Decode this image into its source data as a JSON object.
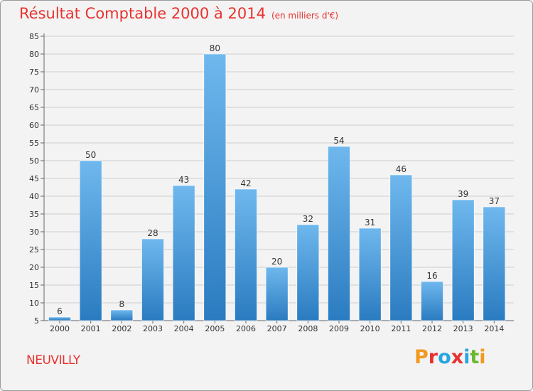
{
  "header": {
    "title": "Résultat Comptable 2000 à 2014",
    "subtitle": "(en milliers d'€)"
  },
  "footer": {
    "commune": "NEUVILLY",
    "brand_letters": [
      "P",
      "r",
      "o",
      "x",
      "i",
      "t",
      "i"
    ]
  },
  "colors": {
    "title": "#e8322f",
    "bar_top": "#6fb8ee",
    "bar_bottom": "#2a7bc0",
    "grid": "#cccccc",
    "background": "#f3f3f3",
    "brand": [
      "#f29a1f",
      "#e8322f",
      "#2aa6de",
      "#e8322f",
      "#2aa6de",
      "#6bb62c",
      "#f29a1f"
    ]
  },
  "chart_data": {
    "type": "bar",
    "title": "Résultat Comptable 2000 à 2014",
    "subtitle": "(en milliers d'€)",
    "xlabel": "",
    "ylabel": "",
    "categories": [
      "2000",
      "2001",
      "2002",
      "2003",
      "2004",
      "2005",
      "2006",
      "2007",
      "2008",
      "2009",
      "2010",
      "2011",
      "2012",
      "2013",
      "2014"
    ],
    "values": [
      6,
      50,
      8,
      28,
      43,
      80,
      42,
      20,
      32,
      54,
      31,
      46,
      16,
      39,
      37
    ],
    "ylim": [
      5,
      85
    ],
    "yticks": [
      5,
      10,
      15,
      20,
      25,
      30,
      35,
      40,
      45,
      50,
      55,
      60,
      65,
      70,
      75,
      80,
      85
    ],
    "grid": true,
    "legend": "none"
  }
}
